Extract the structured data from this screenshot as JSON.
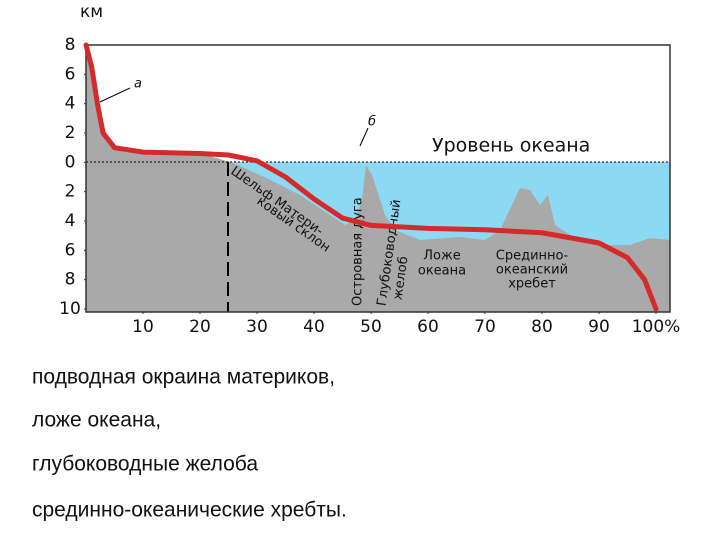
{
  "chart_data": {
    "type": "line",
    "y_unit": "км",
    "sea_level_label": "Уровень океана",
    "x": [
      0,
      1,
      2,
      3,
      5,
      10,
      20,
      25,
      30,
      35,
      40,
      45,
      50,
      60,
      70,
      80,
      90,
      95,
      98,
      100
    ],
    "series": [
      {
        "color": "#d42a2a",
        "values": [
          8,
          6.5,
          4,
          2,
          1,
          0.7,
          0.6,
          0.5,
          0.1,
          -1,
          -2.5,
          -3.8,
          -4.3,
          -4.5,
          -4.6,
          -4.8,
          -5.5,
          -6.5,
          -8,
          -10
        ]
      }
    ],
    "xlim": [
      0,
      100
    ],
    "ylim": [
      -10,
      8
    ],
    "xticks": [
      10,
      20,
      30,
      40,
      50,
      60,
      70,
      80,
      90,
      {
        "value": 100,
        "label": "100%"
      }
    ],
    "yticks": [
      8,
      6,
      4,
      2,
      0,
      {
        "value": -2,
        "label": "2"
      },
      {
        "value": -4,
        "label": "4"
      },
      {
        "value": -6,
        "label": "6"
      },
      {
        "value": -8,
        "label": "8"
      },
      {
        "value": -10,
        "label": "10"
      }
    ],
    "annotations": {
      "a": "а",
      "b": "б",
      "shelf": [
        "Шельф Матери-",
        "ковый склон"
      ],
      "island_arc": "Островная дуга",
      "trench": [
        "Глубоководный",
        "желоб"
      ],
      "ocean_floor": [
        "Ложе",
        "океана"
      ],
      "ridge": [
        "Срединно-",
        "океанский",
        "хребет"
      ]
    }
  },
  "bullets": [
    "подводная окраина материков,",
    "ложе океана,",
    "глубоководные желоба",
    "срединно-океанические хребты."
  ]
}
